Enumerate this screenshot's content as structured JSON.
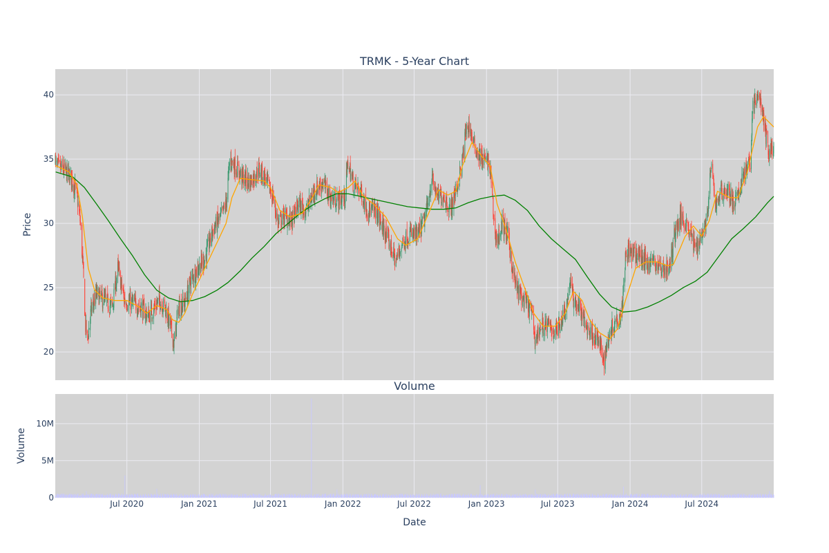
{
  "chart_data": [
    {
      "type": "candlestick",
      "title": "TRMK - 5-Year Chart",
      "ylabel": "Price",
      "ylim": [
        17.8,
        42.0
      ],
      "yticks": [
        20,
        25,
        30,
        35,
        40
      ],
      "xlim": [
        "2020-01-01",
        "2024-12-31"
      ],
      "grid": true,
      "legend": "none",
      "colors": {
        "up": "#3d9970",
        "down": "#ff4136",
        "ma_short": "#ffa500",
        "ma_long": "#008000",
        "plot_bg": "#d3d3d3",
        "grid": "#ebebf2"
      },
      "price_anchors": [
        [
          "2020-01-02",
          34.5
        ],
        [
          "2020-01-20",
          34.2
        ],
        [
          "2020-02-10",
          33.6
        ],
        [
          "2020-02-24",
          32.4
        ],
        [
          "2020-03-05",
          30.0
        ],
        [
          "2020-03-12",
          26.2
        ],
        [
          "2020-03-18",
          22.0
        ],
        [
          "2020-03-23",
          21.0
        ],
        [
          "2020-04-01",
          23.2
        ],
        [
          "2020-04-15",
          24.5
        ],
        [
          "2020-05-05",
          24.0
        ],
        [
          "2020-05-25",
          23.5
        ],
        [
          "2020-06-08",
          26.5
        ],
        [
          "2020-06-25",
          24.0
        ],
        [
          "2020-07-15",
          23.8
        ],
        [
          "2020-08-05",
          23.5
        ],
        [
          "2020-08-25",
          22.8
        ],
        [
          "2020-09-10",
          23.5
        ],
        [
          "2020-09-22",
          24.0
        ],
        [
          "2020-10-05",
          23.5
        ],
        [
          "2020-10-20",
          22.0
        ],
        [
          "2020-10-29",
          20.6
        ],
        [
          "2020-11-09",
          23.5
        ],
        [
          "2020-11-25",
          23.8
        ],
        [
          "2020-12-10",
          25.5
        ],
        [
          "2020-12-28",
          26.5
        ],
        [
          "2021-01-15",
          27.2
        ],
        [
          "2021-02-05",
          29.5
        ],
        [
          "2021-02-25",
          30.5
        ],
        [
          "2021-03-10",
          31.5
        ],
        [
          "2021-03-20",
          35.0
        ],
        [
          "2021-04-01",
          34.5
        ],
        [
          "2021-04-20",
          33.6
        ],
        [
          "2021-05-10",
          33.2
        ],
        [
          "2021-06-01",
          34.2
        ],
        [
          "2021-06-18",
          33.5
        ],
        [
          "2021-07-08",
          32.0
        ],
        [
          "2021-07-20",
          30.0
        ],
        [
          "2021-08-05",
          30.5
        ],
        [
          "2021-08-25",
          30.2
        ],
        [
          "2021-09-10",
          31.5
        ],
        [
          "2021-09-30",
          31.0
        ],
        [
          "2021-10-20",
          32.5
        ],
        [
          "2021-11-10",
          33.2
        ],
        [
          "2021-11-30",
          32.0
        ],
        [
          "2021-12-15",
          31.8
        ],
        [
          "2022-01-05",
          32.0
        ],
        [
          "2022-01-14",
          34.8
        ],
        [
          "2022-01-28",
          33.0
        ],
        [
          "2022-02-15",
          32.5
        ],
        [
          "2022-03-05",
          31.0
        ],
        [
          "2022-03-25",
          31.0
        ],
        [
          "2022-04-15",
          29.5
        ],
        [
          "2022-05-05",
          28.0
        ],
        [
          "2022-05-15",
          27.0
        ],
        [
          "2022-06-01",
          28.5
        ],
        [
          "2022-06-20",
          29.2
        ],
        [
          "2022-07-10",
          29.0
        ],
        [
          "2022-07-30",
          30.5
        ],
        [
          "2022-08-15",
          33.5
        ],
        [
          "2022-08-30",
          32.0
        ],
        [
          "2022-09-15",
          32.2
        ],
        [
          "2022-09-30",
          31.0
        ],
        [
          "2022-10-15",
          32.5
        ],
        [
          "2022-10-30",
          34.5
        ],
        [
          "2022-11-10",
          37.2
        ],
        [
          "2022-11-18",
          37.6
        ],
        [
          "2022-12-01",
          36.0
        ],
        [
          "2022-12-20",
          35.0
        ],
        [
          "2023-01-05",
          34.8
        ],
        [
          "2023-01-12",
          33.8
        ],
        [
          "2023-01-20",
          30.0
        ],
        [
          "2023-01-28",
          28.5
        ],
        [
          "2023-02-10",
          30.0
        ],
        [
          "2023-02-25",
          29.0
        ],
        [
          "2023-03-10",
          26.0
        ],
        [
          "2023-03-20",
          24.8
        ],
        [
          "2023-04-05",
          24.0
        ],
        [
          "2023-04-25",
          23.2
        ],
        [
          "2023-05-05",
          21.0
        ],
        [
          "2023-05-20",
          22.0
        ],
        [
          "2023-06-10",
          22.0
        ],
        [
          "2023-06-25",
          21.5
        ],
        [
          "2023-07-10",
          22.5
        ],
        [
          "2023-07-25",
          23.8
        ],
        [
          "2023-08-01",
          25.6
        ],
        [
          "2023-08-10",
          24.0
        ],
        [
          "2023-08-25",
          23.5
        ],
        [
          "2023-09-10",
          22.0
        ],
        [
          "2023-09-25",
          21.5
        ],
        [
          "2023-10-10",
          21.0
        ],
        [
          "2023-10-27",
          19.4
        ],
        [
          "2023-11-10",
          21.5
        ],
        [
          "2023-11-25",
          22.5
        ],
        [
          "2023-12-10",
          23.0
        ],
        [
          "2023-12-22",
          28.0
        ],
        [
          "2024-01-10",
          27.5
        ],
        [
          "2024-01-25",
          27.5
        ],
        [
          "2024-02-10",
          27.0
        ],
        [
          "2024-03-01",
          27.0
        ],
        [
          "2024-03-20",
          26.5
        ],
        [
          "2024-04-10",
          26.5
        ],
        [
          "2024-04-25",
          29.5
        ],
        [
          "2024-05-10",
          30.5
        ],
        [
          "2024-05-25",
          30.0
        ],
        [
          "2024-06-15",
          28.0
        ],
        [
          "2024-07-05",
          29.5
        ],
        [
          "2024-07-15",
          30.5
        ],
        [
          "2024-07-25",
          34.5
        ],
        [
          "2024-08-05",
          31.5
        ],
        [
          "2024-08-20",
          32.5
        ],
        [
          "2024-09-05",
          32.5
        ],
        [
          "2024-09-20",
          31.5
        ],
        [
          "2024-10-01",
          32.0
        ],
        [
          "2024-10-15",
          34.0
        ],
        [
          "2024-11-01",
          34.5
        ],
        [
          "2024-11-07",
          39.0
        ],
        [
          "2024-11-25",
          40.0
        ],
        [
          "2024-12-05",
          38.0
        ],
        [
          "2024-12-18",
          35.5
        ],
        [
          "2024-12-31",
          36.0
        ]
      ],
      "ma_short": [
        [
          "2020-01-02",
          34.5
        ],
        [
          "2020-02-05",
          34.0
        ],
        [
          "2020-02-25",
          33.0
        ],
        [
          "2020-03-10",
          30.5
        ],
        [
          "2020-03-25",
          26.5
        ],
        [
          "2020-04-10",
          24.8
        ],
        [
          "2020-05-01",
          24.2
        ],
        [
          "2020-06-01",
          24.0
        ],
        [
          "2020-07-01",
          24.0
        ],
        [
          "2020-08-01",
          23.5
        ],
        [
          "2020-08-20",
          23.0
        ],
        [
          "2020-09-15",
          23.6
        ],
        [
          "2020-10-10",
          23.3
        ],
        [
          "2020-10-25",
          22.5
        ],
        [
          "2020-11-10",
          22.3
        ],
        [
          "2020-11-25",
          23.0
        ],
        [
          "2020-12-15",
          24.5
        ],
        [
          "2021-01-15",
          26.5
        ],
        [
          "2021-02-15",
          28.5
        ],
        [
          "2021-03-10",
          30.0
        ],
        [
          "2021-03-25",
          32.0
        ],
        [
          "2021-04-15",
          33.5
        ],
        [
          "2021-05-15",
          33.4
        ],
        [
          "2021-06-15",
          33.3
        ],
        [
          "2021-07-01",
          32.8
        ],
        [
          "2021-07-25",
          31.0
        ],
        [
          "2021-08-20",
          30.5
        ],
        [
          "2021-09-20",
          30.8
        ],
        [
          "2021-10-15",
          32.0
        ],
        [
          "2021-11-01",
          33.0
        ],
        [
          "2021-12-01",
          32.8
        ],
        [
          "2021-12-20",
          32.4
        ],
        [
          "2022-01-15",
          32.8
        ],
        [
          "2022-02-01",
          33.3
        ],
        [
          "2022-02-20",
          32.2
        ],
        [
          "2022-03-20",
          31.5
        ],
        [
          "2022-04-20",
          30.5
        ],
        [
          "2022-05-20",
          28.8
        ],
        [
          "2022-06-10",
          28.3
        ],
        [
          "2022-07-10",
          28.8
        ],
        [
          "2022-08-10",
          31.0
        ],
        [
          "2022-09-01",
          32.6
        ],
        [
          "2022-09-25",
          32.2
        ],
        [
          "2022-10-15",
          32.5
        ],
        [
          "2022-11-01",
          34.5
        ],
        [
          "2022-11-25",
          36.3
        ],
        [
          "2022-12-20",
          35.2
        ],
        [
          "2023-01-10",
          34.5
        ],
        [
          "2023-01-28",
          31.5
        ],
        [
          "2023-02-20",
          29.5
        ],
        [
          "2023-03-15",
          27.0
        ],
        [
          "2023-04-10",
          24.8
        ],
        [
          "2023-05-01",
          23.0
        ],
        [
          "2023-05-25",
          22.0
        ],
        [
          "2023-06-25",
          22.0
        ],
        [
          "2023-07-20",
          23.0
        ],
        [
          "2023-08-10",
          24.7
        ],
        [
          "2023-09-01",
          24.0
        ],
        [
          "2023-09-20",
          22.5
        ],
        [
          "2023-10-15",
          21.5
        ],
        [
          "2023-11-10",
          21.0
        ],
        [
          "2023-11-30",
          21.8
        ],
        [
          "2023-12-20",
          24.0
        ],
        [
          "2024-01-15",
          26.5
        ],
        [
          "2024-02-10",
          27.0
        ],
        [
          "2024-03-10",
          27.0
        ],
        [
          "2024-04-05",
          26.7
        ],
        [
          "2024-04-20",
          26.8
        ],
        [
          "2024-05-20",
          29.0
        ],
        [
          "2024-06-10",
          29.8
        ],
        [
          "2024-07-01",
          29.0
        ],
        [
          "2024-07-20",
          30.2
        ],
        [
          "2024-08-10",
          32.5
        ],
        [
          "2024-09-10",
          32.0
        ],
        [
          "2024-10-01",
          32.0
        ],
        [
          "2024-10-25",
          34.0
        ],
        [
          "2024-11-20",
          37.5
        ],
        [
          "2024-12-05",
          38.3
        ],
        [
          "2024-12-31",
          37.5
        ]
      ],
      "ma_long": [
        [
          "2020-01-02",
          34.0
        ],
        [
          "2020-02-15",
          33.6
        ],
        [
          "2020-03-15",
          32.8
        ],
        [
          "2020-04-15",
          31.5
        ],
        [
          "2020-05-15",
          30.2
        ],
        [
          "2020-06-15",
          28.8
        ],
        [
          "2020-07-15",
          27.5
        ],
        [
          "2020-08-15",
          26.0
        ],
        [
          "2020-09-15",
          24.8
        ],
        [
          "2020-10-15",
          24.2
        ],
        [
          "2020-11-15",
          23.9
        ],
        [
          "2020-12-15",
          24.0
        ],
        [
          "2021-01-15",
          24.3
        ],
        [
          "2021-02-15",
          24.8
        ],
        [
          "2021-03-15",
          25.4
        ],
        [
          "2021-04-15",
          26.3
        ],
        [
          "2021-05-15",
          27.3
        ],
        [
          "2021-06-15",
          28.2
        ],
        [
          "2021-07-15",
          29.2
        ],
        [
          "2021-08-15",
          30.0
        ],
        [
          "2021-09-15",
          30.8
        ],
        [
          "2021-10-15",
          31.4
        ],
        [
          "2021-11-15",
          31.9
        ],
        [
          "2021-12-15",
          32.3
        ],
        [
          "2022-01-15",
          32.3
        ],
        [
          "2022-02-15",
          32.1
        ],
        [
          "2022-03-15",
          31.9
        ],
        [
          "2022-04-15",
          31.7
        ],
        [
          "2022-05-15",
          31.5
        ],
        [
          "2022-06-15",
          31.3
        ],
        [
          "2022-07-15",
          31.2
        ],
        [
          "2022-08-15",
          31.1
        ],
        [
          "2022-09-15",
          31.1
        ],
        [
          "2022-10-15",
          31.2
        ],
        [
          "2022-11-15",
          31.6
        ],
        [
          "2022-12-15",
          31.9
        ],
        [
          "2023-01-15",
          32.1
        ],
        [
          "2023-02-15",
          32.2
        ],
        [
          "2023-03-15",
          31.8
        ],
        [
          "2023-04-15",
          31.0
        ],
        [
          "2023-05-15",
          29.8
        ],
        [
          "2023-06-15",
          28.8
        ],
        [
          "2023-07-15",
          28.0
        ],
        [
          "2023-08-15",
          27.2
        ],
        [
          "2023-09-15",
          25.8
        ],
        [
          "2023-10-15",
          24.5
        ],
        [
          "2023-11-15",
          23.5
        ],
        [
          "2023-12-15",
          23.1
        ],
        [
          "2024-01-15",
          23.2
        ],
        [
          "2024-02-15",
          23.5
        ],
        [
          "2024-03-15",
          23.9
        ],
        [
          "2024-04-15",
          24.4
        ],
        [
          "2024-05-15",
          25.0
        ],
        [
          "2024-06-15",
          25.5
        ],
        [
          "2024-07-15",
          26.2
        ],
        [
          "2024-08-15",
          27.5
        ],
        [
          "2024-09-15",
          28.8
        ],
        [
          "2024-10-15",
          29.6
        ],
        [
          "2024-11-15",
          30.5
        ],
        [
          "2024-12-15",
          31.6
        ],
        [
          "2024-12-31",
          32.1
        ]
      ]
    },
    {
      "type": "bar",
      "title": "Volume",
      "xlabel": "Date",
      "ylabel": "Volume",
      "ylim": [
        0,
        14000000
      ],
      "yticks": [
        0,
        5000000,
        10000000
      ],
      "ytick_labels": [
        "0",
        "5M",
        "10M"
      ],
      "xticks": [
        "2020-07-01",
        "2021-01-01",
        "2021-07-01",
        "2022-01-01",
        "2022-07-01",
        "2023-01-01",
        "2023-07-01",
        "2024-01-01",
        "2024-07-01"
      ],
      "xtick_labels": [
        "Jul 2020",
        "Jan 2021",
        "Jul 2021",
        "Jan 2022",
        "Jul 2022",
        "Jan 2023",
        "Jul 2023",
        "Jan 2024",
        "Jul 2024"
      ],
      "grid": true,
      "colors": {
        "bar": "#c8c8ff",
        "plot_bg": "#d3d3d3"
      },
      "typical_volume": 350000,
      "spikes": [
        [
          "2020-03-20",
          900000
        ],
        [
          "2020-06-26",
          3000000
        ],
        [
          "2020-09-15",
          1200000
        ],
        [
          "2021-10-13",
          13400000
        ],
        [
          "2021-12-17",
          1100000
        ],
        [
          "2022-12-16",
          1700000
        ],
        [
          "2023-05-05",
          1100000
        ],
        [
          "2023-12-15",
          1500000
        ],
        [
          "2024-12-20",
          900000
        ]
      ]
    }
  ]
}
